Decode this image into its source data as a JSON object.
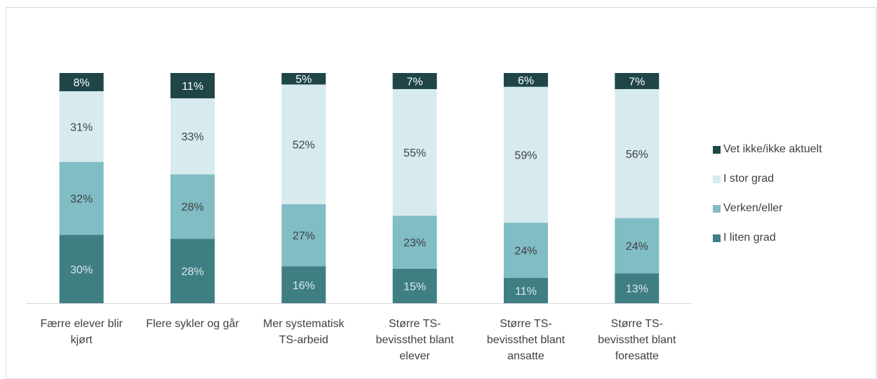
{
  "chart_data": {
    "type": "bar",
    "stacked": true,
    "normalized": true,
    "categories": [
      "Færre elever blir kjørt",
      "Flere sykler og går",
      "Mer systematisk TS-arbeid",
      "Større TS-bevissthet blant elever",
      "Større TS-bevissthet blant ansatte",
      "Større TS-bevissthet blant foresatte"
    ],
    "category_lines": [
      [
        "Færre elever blir",
        "kjørt"
      ],
      [
        "Flere sykler og går"
      ],
      [
        "Mer systematisk",
        "TS-arbeid"
      ],
      [
        "Større TS-",
        "bevissthet blant",
        "elever"
      ],
      [
        "Større TS-",
        "bevissthet blant",
        "ansatte"
      ],
      [
        "Større TS-",
        "bevissthet blant",
        "foresatte"
      ]
    ],
    "series": [
      {
        "name": "I liten grad",
        "color": "#3f7f84",
        "label_color": "#dbe8e9",
        "values": [
          30,
          28,
          16,
          15,
          11,
          13
        ]
      },
      {
        "name": "Verken/eller",
        "color": "#80bdc5",
        "label_color": "#404040",
        "values": [
          32,
          28,
          27,
          23,
          24,
          24
        ]
      },
      {
        "name": "I stor grad",
        "color": "#d7ebef",
        "label_color": "#404040",
        "values": [
          31,
          33,
          52,
          55,
          59,
          56
        ]
      },
      {
        "name": "Vet ikke/ikke aktuelt",
        "color": "#1f4549",
        "label_color": "#ffffff",
        "values": [
          8,
          11,
          5,
          7,
          6,
          7
        ]
      }
    ],
    "value_suffix": "%",
    "legend_position": "right",
    "legend_order": [
      "Vet ikke/ikke aktuelt",
      "I stor grad",
      "Verken/eller",
      "I liten grad"
    ],
    "grid": false
  }
}
